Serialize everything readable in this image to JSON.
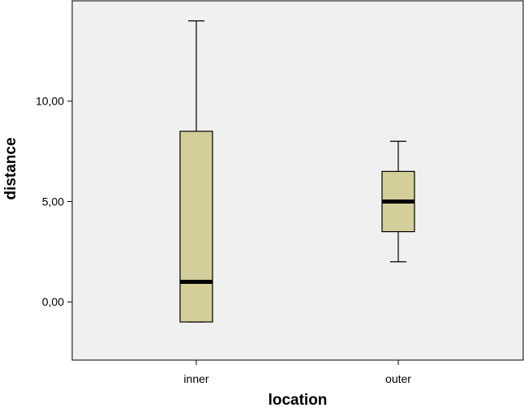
{
  "chart_data": {
    "type": "boxplot",
    "xlabel": "location",
    "ylabel": "distance",
    "ylim": [
      -2.9,
      15.0
    ],
    "y_ticks": [
      {
        "value": 0,
        "label": "0,00"
      },
      {
        "value": 5,
        "label": "5,00"
      },
      {
        "value": 10,
        "label": "10,00"
      }
    ],
    "categories": [
      "inner",
      "outer"
    ],
    "boxes": [
      {
        "category": "inner",
        "whisker_low": -1.0,
        "q1": -1.0,
        "median": 1.0,
        "q3": 8.5,
        "whisker_high": 14.0
      },
      {
        "category": "outer",
        "whisker_low": 2.0,
        "q1": 3.5,
        "median": 5.0,
        "q3": 6.5,
        "whisker_high": 8.0
      }
    ],
    "grid": false,
    "legend": "none",
    "colors": {
      "plot_background": "#f0f0f0",
      "box_fill": "#d4cf9a",
      "stroke": "#000000"
    }
  }
}
